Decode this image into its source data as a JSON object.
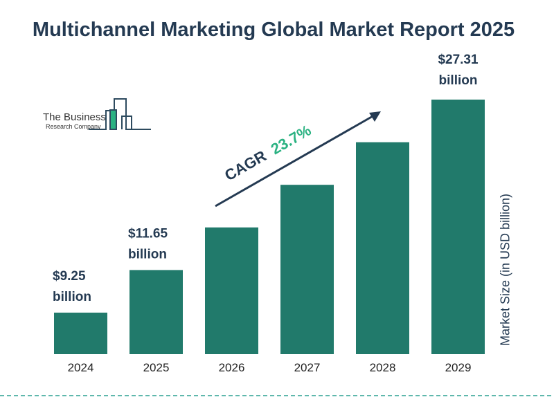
{
  "logo": {
    "line1": "The Business",
    "line2": "Research Company"
  },
  "chart_data": {
    "type": "bar",
    "title": "Multichannel Marketing Global Market Report 2025",
    "ylabel": "Market Size (in USD billion)",
    "categories": [
      "2024",
      "2025",
      "2026",
      "2027",
      "2028",
      "2029"
    ],
    "values": [
      9.25,
      11.65,
      null,
      null,
      null,
      27.31
    ],
    "data_labels": {
      "0": [
        "$9.25",
        "billion"
      ],
      "1": [
        "$11.65",
        "billion"
      ],
      "5": [
        "$27.31",
        "billion"
      ]
    },
    "annotation": {
      "label": "CAGR",
      "value": "23.7%"
    },
    "grid": false,
    "colors": {
      "bar": "#217a6b",
      "title": "#243a52",
      "cagr": "#2bb282",
      "dashed_line": "#2aa190"
    }
  }
}
